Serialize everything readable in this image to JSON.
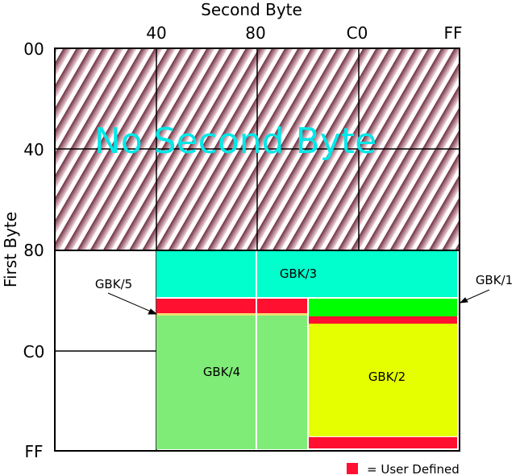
{
  "axes": {
    "x_title": "Second Byte",
    "y_title": "First Byte",
    "x_ticks": [
      "40",
      "80",
      "C0",
      "FF"
    ],
    "y_ticks": [
      "00",
      "40",
      "80",
      "C0",
      "FF"
    ]
  },
  "regions": {
    "no_second": "No Second Byte",
    "gbk1": "GBK/1",
    "gbk2": "GBK/2",
    "gbk3": "GBK/3",
    "gbk4": "GBK/4",
    "gbk5": "GBK/5"
  },
  "legend": {
    "label": "= User Defined",
    "color": "#ff1030"
  },
  "colors": {
    "gbk3": "#00ffcc",
    "gbk4": "#80ec78",
    "gbk1": "#00ff00",
    "gbk2": "#e6ff00",
    "user": "#ff1030"
  }
}
